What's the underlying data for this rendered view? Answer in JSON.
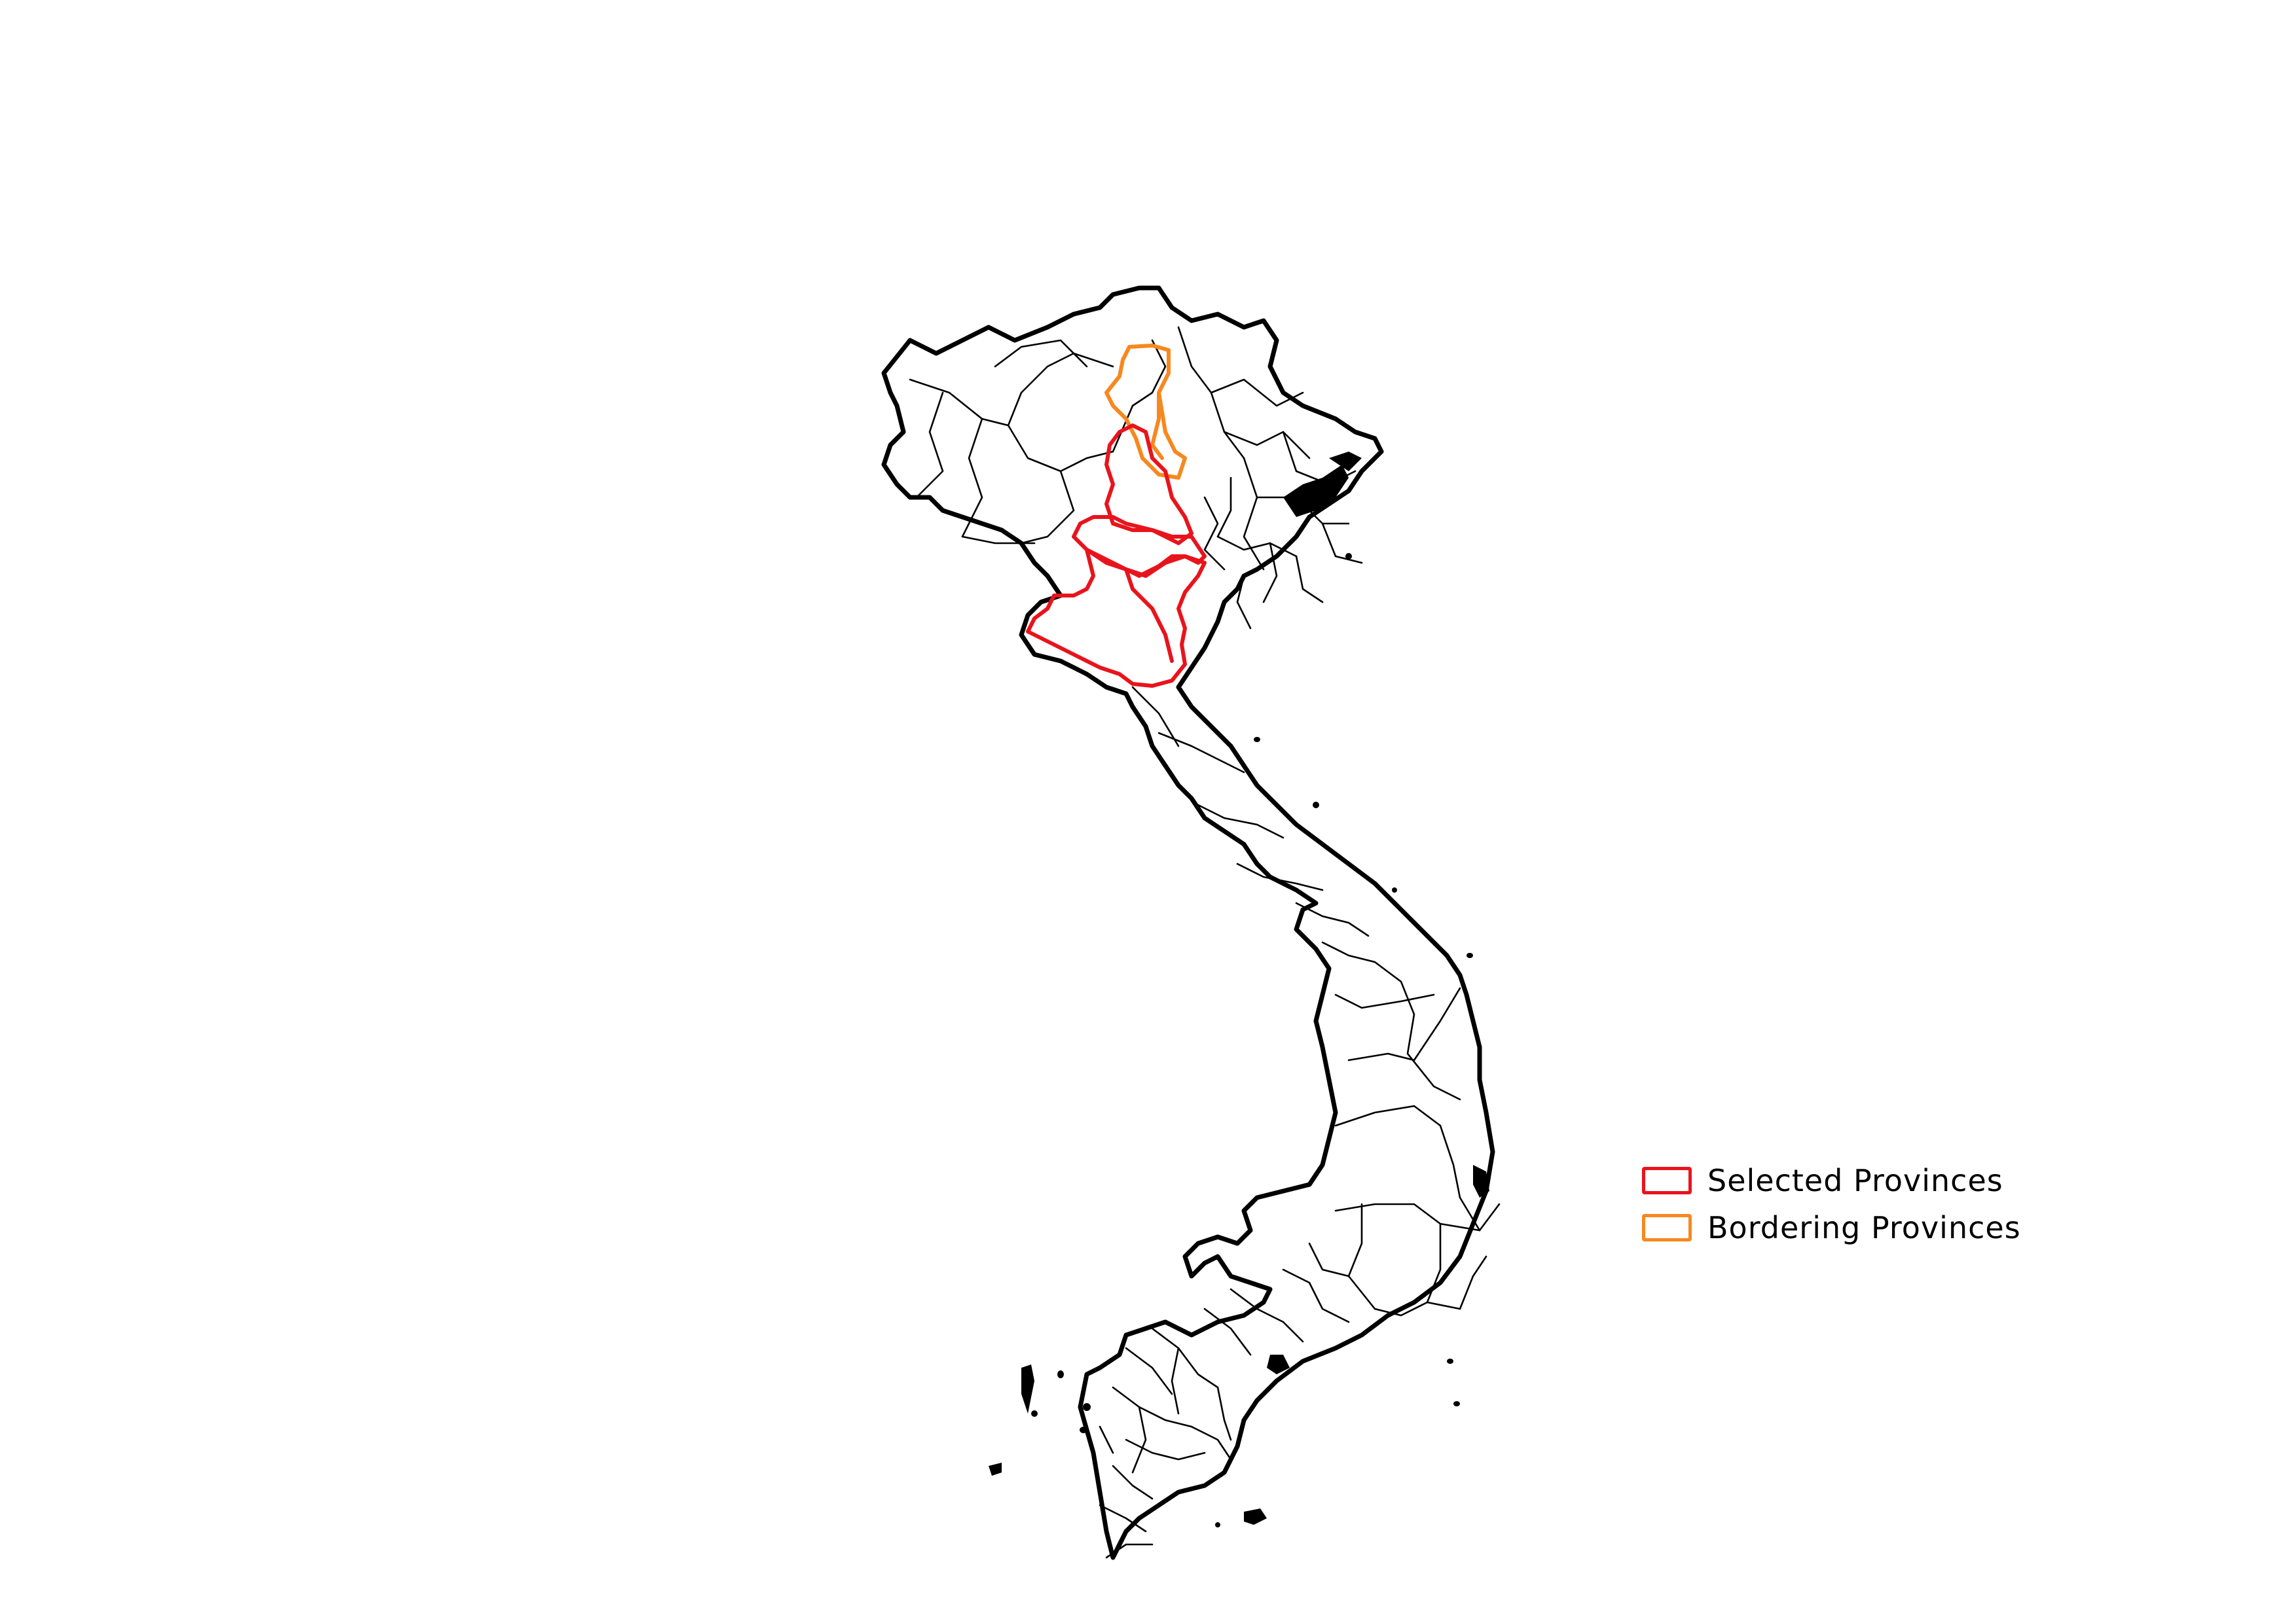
{
  "map": {
    "country_outline_color": "#000000",
    "province_outline_color": "#000000",
    "background_color": "#ffffff"
  },
  "legend": {
    "placement": "right",
    "items": [
      {
        "label": "Selected Provinces",
        "color": "#e8141c"
      },
      {
        "label": "Bordering Provinces",
        "color": "#f7881f"
      }
    ]
  }
}
